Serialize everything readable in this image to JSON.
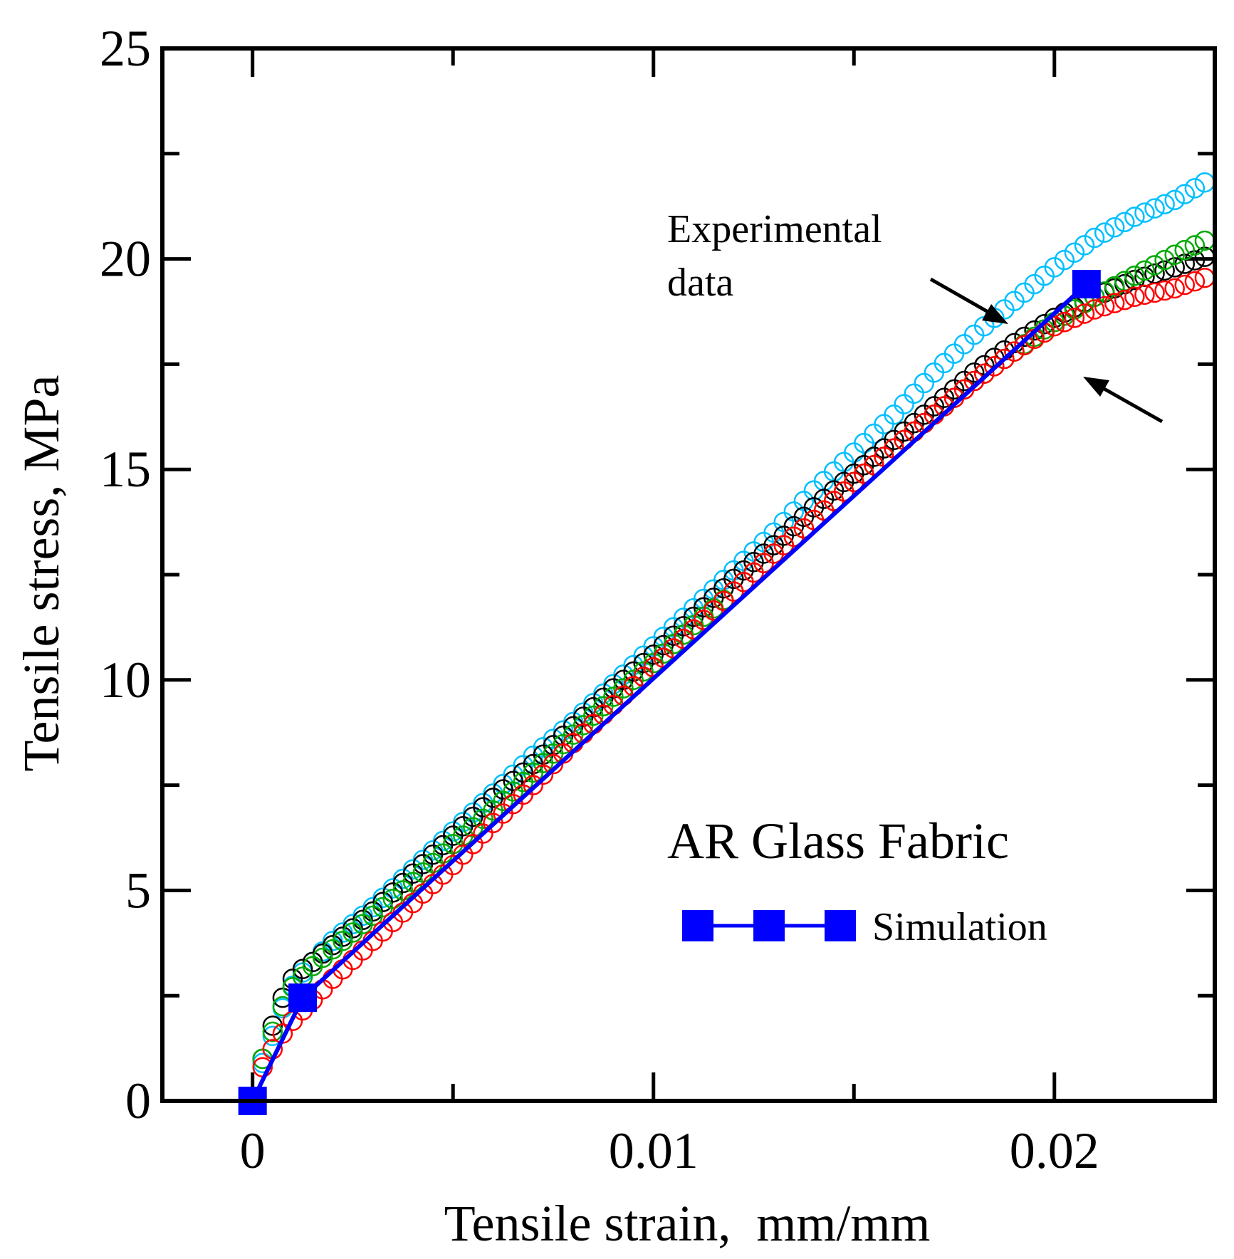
{
  "chart_data": {
    "type": "scatter",
    "title": "",
    "xlabel": "Tensile strain,  mm/mm",
    "ylabel": "Tensile stress, MPa",
    "xlim": [
      -0.00225,
      0.024
    ],
    "ylim": [
      0,
      25
    ],
    "x_ticks": [
      0,
      0.01,
      0.02
    ],
    "x_tick_labels": [
      "0",
      "0.01",
      "0.02"
    ],
    "y_ticks": [
      0,
      5,
      10,
      15,
      20,
      25
    ],
    "y_tick_labels": [
      "0",
      "5",
      "10",
      "15",
      "20",
      "25"
    ],
    "grid": false,
    "legend_placement": "bottom-right",
    "annotation": {
      "text_line1": "Experimental",
      "text_line2": "data"
    },
    "inset_title": "AR Glass Fabric",
    "legend": [
      {
        "label": "Simulation",
        "marker": "square",
        "color": "#0000ff"
      }
    ],
    "series": [
      {
        "style": "simulation",
        "name": "Simulation",
        "color": "#0000ff",
        "x": [
          0.0,
          0.00125,
          0.0208
        ],
        "y": [
          0.0,
          2.45,
          19.4
        ]
      },
      {
        "style": "open-circles",
        "color": "#00bfff",
        "x": [
          0.0,
          0.00025,
          0.0006,
          0.0009,
          0.0012,
          0.0015,
          0.002,
          0.003,
          0.004,
          0.005,
          0.006,
          0.007,
          0.008,
          0.009,
          0.01,
          0.011,
          0.012,
          0.013,
          0.014,
          0.015,
          0.016,
          0.017,
          0.018,
          0.019,
          0.02,
          0.021,
          0.022,
          0.023,
          0.0239
        ],
        "y": [
          0.0,
          0.9,
          1.8,
          2.6,
          3.0,
          3.3,
          3.8,
          4.6,
          5.5,
          6.4,
          7.3,
          8.2,
          9.0,
          9.9,
          10.8,
          11.7,
          12.6,
          13.5,
          14.5,
          15.4,
          16.3,
          17.3,
          18.2,
          19.0,
          19.8,
          20.5,
          21.0,
          21.4,
          21.9
        ]
      },
      {
        "style": "open-circles",
        "color": "#000000",
        "x": [
          0.0,
          0.00025,
          0.0006,
          0.0009,
          0.0012,
          0.0015,
          0.002,
          0.003,
          0.004,
          0.005,
          0.006,
          0.007,
          0.008,
          0.009,
          0.01,
          0.011,
          0.012,
          0.013,
          0.014,
          0.015,
          0.016,
          0.017,
          0.018,
          0.019,
          0.02,
          0.021,
          0.022,
          0.023,
          0.0239
        ],
        "y": [
          0.0,
          1.0,
          2.1,
          2.8,
          3.1,
          3.3,
          3.7,
          4.5,
          5.4,
          6.3,
          7.2,
          8.0,
          8.9,
          9.8,
          10.6,
          11.5,
          12.4,
          13.2,
          14.1,
          14.9,
          15.7,
          16.5,
          17.3,
          18.0,
          18.6,
          19.1,
          19.5,
          19.8,
          20.1
        ]
      },
      {
        "style": "open-circles",
        "color": "#00aa00",
        "x": [
          0.0,
          0.00025,
          0.0006,
          0.0009,
          0.0012,
          0.0015,
          0.002,
          0.003,
          0.004,
          0.005,
          0.006,
          0.007,
          0.008,
          0.009,
          0.01,
          0.011,
          0.012,
          0.013,
          0.014,
          0.015,
          0.016,
          0.017,
          0.018,
          0.019,
          0.02,
          0.021,
          0.022,
          0.023,
          0.0239
        ],
        "y": [
          0.0,
          1.0,
          1.9,
          2.6,
          2.9,
          3.2,
          3.6,
          4.4,
          5.2,
          6.1,
          6.9,
          7.8,
          8.7,
          9.6,
          10.4,
          11.3,
          12.1,
          13.0,
          13.8,
          14.7,
          15.5,
          16.3,
          17.1,
          17.8,
          18.5,
          19.1,
          19.6,
          20.1,
          20.5
        ]
      },
      {
        "style": "open-circles",
        "color": "#ff0000",
        "x": [
          0.0,
          0.00025,
          0.0006,
          0.0009,
          0.0012,
          0.0015,
          0.002,
          0.003,
          0.004,
          0.005,
          0.006,
          0.007,
          0.008,
          0.009,
          0.01,
          0.011,
          0.012,
          0.013,
          0.014,
          0.015,
          0.016,
          0.017,
          0.018,
          0.019,
          0.02,
          0.021,
          0.022,
          0.023,
          0.0239
        ],
        "y": [
          0.0,
          0.8,
          1.4,
          1.8,
          2.1,
          2.4,
          2.9,
          3.8,
          4.7,
          5.6,
          6.6,
          7.5,
          8.5,
          9.4,
          10.3,
          11.2,
          12.1,
          13.0,
          13.8,
          14.7,
          15.5,
          16.3,
          17.1,
          17.8,
          18.4,
          18.8,
          19.1,
          19.3,
          19.6
        ]
      }
    ]
  }
}
